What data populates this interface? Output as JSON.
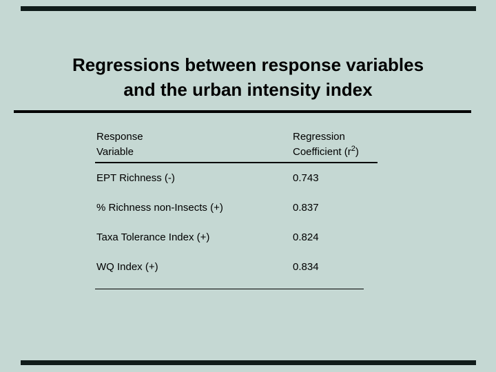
{
  "slide": {
    "title": {
      "line1": "Regressions between response variables",
      "line2": "and the urban intensity index"
    },
    "colors": {
      "background": "#c5d8d3",
      "accent_bar": "#101c1a",
      "text": "#000000",
      "rule": "#000000"
    },
    "table": {
      "headers": {
        "col1_line1": "Response",
        "col1_line2": "Variable",
        "col2_line1": "Regression",
        "col2_line2_prefix": "Coefficient (r",
        "col2_line2_sup": "2",
        "col2_line2_suffix": ")"
      },
      "rows": [
        {
          "variable": "EPT Richness (-)",
          "coefficient": "0.743"
        },
        {
          "variable": "% Richness non-Insects (+)",
          "coefficient": "0.837"
        },
        {
          "variable": "Taxa Tolerance Index (+)",
          "coefficient": "0.824"
        },
        {
          "variable": "WQ Index (+)",
          "coefficient": "0.834"
        }
      ]
    }
  }
}
